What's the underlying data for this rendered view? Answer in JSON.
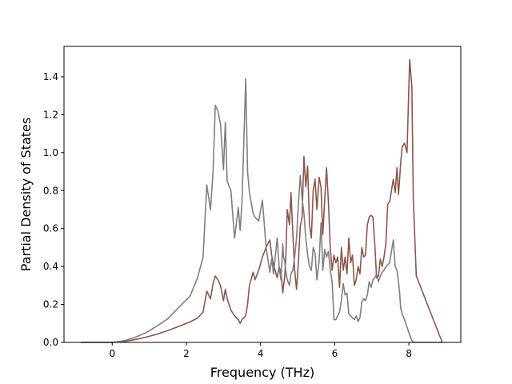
{
  "chart_data": {
    "type": "line",
    "title": "",
    "xlabel": "Frequency (THz)",
    "ylabel": "Partial Density of States",
    "xlim": [
      -1.3,
      9.4
    ],
    "ylim": [
      0.0,
      1.56
    ],
    "xticks": [
      0,
      2,
      4,
      6,
      8
    ],
    "yticks": [
      0.0,
      0.2,
      0.4,
      0.6,
      0.8,
      1.0,
      1.2,
      1.4
    ],
    "xtick_labels": [
      "0",
      "2",
      "4",
      "6",
      "8"
    ],
    "ytick_labels": [
      "0.0",
      "0.2",
      "0.4",
      "0.6",
      "0.8",
      "1.0",
      "1.2",
      "1.4"
    ],
    "grid": false,
    "legend": "none",
    "series": [
      {
        "color": "#8c564b",
        "x": [
          -0.85,
          0.0,
          0.3,
          0.6,
          0.9,
          1.2,
          1.5,
          1.8,
          2.1,
          2.3,
          2.45,
          2.55,
          2.65,
          2.72,
          2.78,
          2.85,
          2.92,
          3.0,
          3.05,
          3.1,
          3.2,
          3.3,
          3.4,
          3.45,
          3.5,
          3.6,
          3.65,
          3.7,
          3.8,
          3.85,
          3.95,
          4.05,
          4.15,
          4.25,
          4.3,
          4.35,
          4.45,
          4.5,
          4.55,
          4.6,
          4.62,
          4.65,
          4.68,
          4.72,
          4.78,
          4.82,
          4.87,
          4.92,
          4.97,
          5.02,
          5.07,
          5.12,
          5.17,
          5.22,
          5.27,
          5.32,
          5.37,
          5.42,
          5.47,
          5.52,
          5.58,
          5.63,
          5.68,
          5.73,
          5.78,
          5.83,
          5.88,
          5.93,
          5.98,
          6.03,
          6.08,
          6.13,
          6.18,
          6.23,
          6.28,
          6.33,
          6.38,
          6.43,
          6.48,
          6.53,
          6.58,
          6.63,
          6.68,
          6.73,
          6.78,
          6.83,
          6.88,
          6.93,
          6.98,
          7.03,
          7.08,
          7.13,
          7.18,
          7.23,
          7.28,
          7.33,
          7.38,
          7.43,
          7.48,
          7.53,
          7.58,
          7.63,
          7.68,
          7.72,
          7.75,
          7.78,
          7.82,
          7.88,
          7.95,
          8.02,
          8.08,
          8.12,
          8.2,
          8.9
        ],
        "values": [
          0.0,
          0.0,
          0.004,
          0.014,
          0.027,
          0.043,
          0.062,
          0.085,
          0.108,
          0.128,
          0.16,
          0.27,
          0.23,
          0.31,
          0.35,
          0.33,
          0.3,
          0.22,
          0.28,
          0.23,
          0.17,
          0.14,
          0.12,
          0.1,
          0.12,
          0.14,
          0.2,
          0.3,
          0.37,
          0.33,
          0.38,
          0.45,
          0.5,
          0.54,
          0.46,
          0.41,
          0.34,
          0.4,
          0.37,
          0.26,
          0.3,
          0.34,
          0.44,
          0.7,
          0.62,
          0.79,
          0.58,
          0.38,
          0.28,
          0.42,
          0.61,
          0.66,
          0.98,
          0.82,
          0.93,
          0.62,
          0.55,
          0.8,
          0.86,
          0.7,
          0.87,
          0.82,
          0.57,
          0.75,
          0.92,
          0.74,
          0.5,
          0.38,
          0.46,
          0.42,
          0.45,
          0.29,
          0.5,
          0.38,
          0.45,
          0.36,
          0.55,
          0.42,
          0.46,
          0.3,
          0.33,
          0.4,
          0.36,
          0.5,
          0.45,
          0.46,
          0.62,
          0.66,
          0.67,
          0.66,
          0.52,
          0.34,
          0.35,
          0.44,
          0.4,
          0.45,
          0.52,
          0.73,
          0.74,
          0.8,
          0.86,
          0.79,
          0.92,
          0.78,
          0.86,
          0.95,
          1.03,
          1.05,
          1.0,
          1.49,
          1.35,
          0.75,
          0.35,
          0.0
        ]
      },
      {
        "color": "#7f7f7f",
        "x": [
          -0.85,
          0.0,
          0.3,
          0.6,
          0.9,
          1.2,
          1.5,
          1.8,
          2.1,
          2.3,
          2.45,
          2.55,
          2.65,
          2.72,
          2.78,
          2.85,
          2.92,
          3.0,
          3.05,
          3.1,
          3.2,
          3.3,
          3.4,
          3.45,
          3.5,
          3.6,
          3.65,
          3.7,
          3.8,
          3.85,
          3.95,
          4.05,
          4.15,
          4.25,
          4.3,
          4.35,
          4.45,
          4.5,
          4.55,
          4.6,
          4.62,
          4.65,
          4.68,
          4.72,
          4.78,
          4.82,
          4.87,
          4.92,
          4.97,
          5.02,
          5.07,
          5.12,
          5.17,
          5.22,
          5.27,
          5.32,
          5.37,
          5.42,
          5.47,
          5.52,
          5.58,
          5.63,
          5.68,
          5.73,
          5.78,
          5.83,
          5.88,
          5.93,
          5.98,
          6.03,
          6.08,
          6.13,
          6.18,
          6.23,
          6.28,
          6.33,
          6.38,
          6.43,
          6.48,
          6.53,
          6.58,
          6.63,
          6.68,
          6.73,
          6.78,
          6.83,
          6.88,
          6.93,
          6.98,
          7.03,
          7.08,
          7.13,
          7.18,
          7.23,
          7.28,
          7.33,
          7.38,
          7.43,
          7.48,
          7.53,
          7.58,
          7.63,
          7.68,
          7.72,
          7.75,
          7.78,
          7.82,
          7.88,
          7.95,
          8.02,
          8.08,
          8.12,
          8.2,
          8.9
        ],
        "values": [
          0.0,
          0.0,
          0.008,
          0.025,
          0.05,
          0.085,
          0.125,
          0.185,
          0.245,
          0.34,
          0.45,
          0.83,
          0.7,
          0.9,
          1.25,
          1.22,
          1.15,
          0.91,
          1.16,
          0.85,
          0.8,
          0.55,
          0.71,
          0.59,
          0.74,
          1.39,
          0.9,
          0.79,
          0.68,
          0.66,
          0.64,
          0.75,
          0.5,
          0.37,
          0.44,
          0.36,
          0.55,
          0.4,
          0.33,
          0.52,
          0.45,
          0.43,
          0.38,
          0.33,
          0.3,
          0.36,
          0.38,
          0.45,
          0.55,
          0.72,
          0.88,
          0.76,
          0.68,
          0.55,
          0.46,
          0.4,
          0.38,
          0.5,
          0.47,
          0.33,
          0.43,
          0.63,
          0.38,
          0.49,
          0.45,
          0.48,
          0.38,
          0.32,
          0.12,
          0.12,
          0.14,
          0.16,
          0.22,
          0.31,
          0.25,
          0.26,
          0.15,
          0.14,
          0.13,
          0.12,
          0.14,
          0.11,
          0.13,
          0.21,
          0.23,
          0.22,
          0.25,
          0.32,
          0.29,
          0.33,
          0.34,
          0.36,
          0.32,
          0.35,
          0.37,
          0.38,
          0.4,
          0.41,
          0.42,
          0.48,
          0.54,
          0.4,
          0.38,
          0.32,
          0.26,
          0.18,
          0.15,
          0.12,
          0.08,
          0.04,
          0.01,
          0.0,
          0.0,
          0.0
        ]
      }
    ]
  }
}
